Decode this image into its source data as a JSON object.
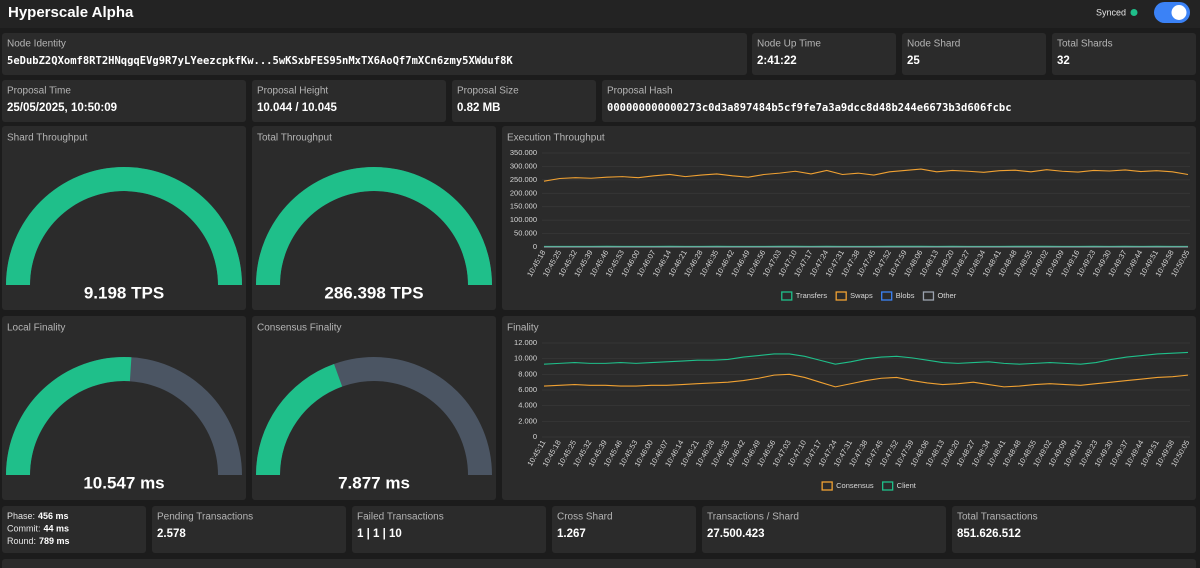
{
  "header": {
    "title": "Hyperscale Alpha",
    "status": "Synced"
  },
  "cards": [
    {
      "label": "Node Identity",
      "value": "5eDubZ2QXomf8RT2HNqgqEVg9R7yLYeezcpkfKw...5wKSxbFES95nMxTX6AoQf7mXCn6zmy5XWduf8K"
    },
    {
      "label": "Node Up Time",
      "value": "2:41:22"
    },
    {
      "label": "Node Shard",
      "value": "25"
    },
    {
      "label": "Total Shards",
      "value": "32"
    },
    {
      "label": "Proposal Time",
      "value": "25/05/2025, 10:50:09"
    },
    {
      "label": "Proposal Height",
      "value": "10.044 / 10.045"
    },
    {
      "label": "Proposal Size",
      "value": "0.82 MB"
    },
    {
      "label": "Proposal Hash",
      "value": "000000000000273c0d3a897484b5cf9fe7a3a9dcc8d48b244e6673b3d606fcbc"
    },
    {
      "label": "Pending Transactions",
      "value": "2.578"
    },
    {
      "label": "Failed Transactions",
      "value": "1 | 1 | 10"
    },
    {
      "label": "Cross Shard",
      "value": "1.267"
    },
    {
      "label": "Transactions / Shard",
      "value": "27.500.423"
    },
    {
      "label": "Total Transactions",
      "value": "851.626.512"
    }
  ],
  "phases": [
    {
      "label": "Phase:",
      "value": "456 ms"
    },
    {
      "label": "Commit:",
      "value": "44 ms"
    },
    {
      "label": "Round:",
      "value": "789 ms"
    }
  ],
  "gauges": [
    {
      "title": "Shard Throughput",
      "label": "9.198 TPS",
      "percent": 100
    },
    {
      "title": "Total Throughput",
      "label": "286.398 TPS",
      "percent": 100
    },
    {
      "title": "Local Finality",
      "label": "10.547 ms",
      "percent": 52
    },
    {
      "title": "Consensus Finality",
      "label": "7.877 ms",
      "percent": 39
    }
  ],
  "chart_data": [
    {
      "type": "line",
      "title": "Execution Throughput",
      "categories": [
        "10:45:18",
        "10:45:25",
        "10:45:32",
        "10:45:39",
        "10:45:46",
        "10:45:53",
        "10:46:00",
        "10:46:07",
        "10:46:14",
        "10:46:21",
        "10:46:28",
        "10:46:35",
        "10:46:42",
        "10:46:49",
        "10:46:56",
        "10:47:03",
        "10:47:10",
        "10:47:17",
        "10:47:24",
        "10:47:31",
        "10:47:38",
        "10:47:45",
        "10:47:52",
        "10:47:59",
        "10:48:06",
        "10:48:13",
        "10:48:20",
        "10:48:27",
        "10:48:34",
        "10:48:41",
        "10:48:48",
        "10:48:55",
        "10:49:02",
        "10:49:09",
        "10:49:16",
        "10:49:23",
        "10:49:30",
        "10:49:37",
        "10:49:44",
        "10:49:51",
        "10:49:58",
        "10:50:05"
      ],
      "series": [
        {
          "name": "Transfers",
          "color": "#1fbf8a",
          "values": [
            2100,
            2300,
            2000,
            2200,
            2400,
            2100,
            2300,
            2200,
            2500,
            2100,
            2300,
            2400,
            2200,
            2100,
            2300,
            2500,
            2400,
            2200,
            2600,
            2300,
            2200,
            2100,
            2400,
            2500,
            2600,
            2300,
            2400,
            2200,
            2100,
            2300,
            2500,
            2400,
            2600,
            2300,
            2200,
            2400,
            2300,
            2500,
            2200,
            2400,
            2300,
            2100
          ]
        },
        {
          "name": "Swaps",
          "color": "#f0a132",
          "values": [
            245000,
            255000,
            258000,
            256000,
            260000,
            262000,
            258000,
            265000,
            270000,
            262000,
            268000,
            272000,
            265000,
            260000,
            270000,
            275000,
            282000,
            272000,
            285000,
            270000,
            275000,
            268000,
            280000,
            285000,
            290000,
            280000,
            285000,
            282000,
            278000,
            284000,
            286000,
            280000,
            288000,
            282000,
            279000,
            285000,
            283000,
            287000,
            281000,
            284000,
            280000,
            270000
          ]
        },
        {
          "name": "Blobs",
          "color": "#3b82f6",
          "values": [
            0,
            0,
            0,
            0,
            0,
            0,
            0,
            0,
            0,
            0,
            0,
            0,
            0,
            0,
            0,
            0,
            0,
            0,
            0,
            0,
            0,
            0,
            0,
            0,
            0,
            0,
            0,
            0,
            0,
            0,
            0,
            0,
            0,
            0,
            0,
            0,
            0,
            0,
            0,
            0,
            0,
            0
          ]
        },
        {
          "name": "Other",
          "color": "#9ca3af",
          "values": [
            0,
            0,
            0,
            0,
            0,
            0,
            0,
            0,
            0,
            0,
            0,
            0,
            0,
            0,
            0,
            0,
            0,
            0,
            0,
            0,
            0,
            0,
            0,
            0,
            0,
            0,
            0,
            0,
            0,
            0,
            0,
            0,
            0,
            0,
            0,
            0,
            0,
            0,
            0,
            0,
            0,
            0
          ]
        }
      ],
      "ylim": [
        0,
        350000
      ],
      "yticks": [
        0,
        {
          "value": 50000,
          "label": "50.000"
        },
        {
          "value": 100000,
          "label": "100.000"
        },
        {
          "value": 150000,
          "label": "150.000"
        },
        {
          "value": 200000,
          "label": "200.000"
        },
        {
          "value": 250000,
          "label": "250.000"
        },
        {
          "value": 300000,
          "label": "300.000"
        },
        {
          "value": 350000,
          "label": "350.000"
        }
      ],
      "grid": true,
      "legend": "bottom"
    },
    {
      "type": "line",
      "title": "Finality",
      "categories": [
        "10:45:11",
        "10:45:18",
        "10:45:25",
        "10:45:32",
        "10:45:39",
        "10:45:46",
        "10:45:53",
        "10:46:00",
        "10:46:07",
        "10:46:14",
        "10:46:21",
        "10:46:28",
        "10:46:35",
        "10:46:42",
        "10:46:49",
        "10:46:56",
        "10:47:03",
        "10:47:10",
        "10:47:17",
        "10:47:24",
        "10:47:31",
        "10:47:38",
        "10:47:45",
        "10:47:52",
        "10:47:59",
        "10:48:06",
        "10:48:13",
        "10:48:20",
        "10:48:27",
        "10:48:34",
        "10:48:41",
        "10:48:48",
        "10:48:55",
        "10:49:02",
        "10:49:09",
        "10:49:16",
        "10:49:23",
        "10:49:30",
        "10:49:37",
        "10:49:44",
        "10:49:51",
        "10:49:58",
        "10:50:05"
      ],
      "series": [
        {
          "name": "Consensus",
          "color": "#f0a132",
          "values": [
            6500,
            6600,
            6700,
            6600,
            6600,
            6500,
            6500,
            6600,
            6600,
            6700,
            6800,
            6900,
            7000,
            7200,
            7500,
            7900,
            8000,
            7600,
            7000,
            6400,
            6800,
            7200,
            7500,
            7600,
            7200,
            6900,
            6700,
            6800,
            7000,
            6700,
            6400,
            6500,
            6700,
            6800,
            6700,
            6600,
            6800,
            7000,
            7200,
            7400,
            7600,
            7700,
            7900
          ]
        },
        {
          "name": "Client",
          "color": "#1fbf8a",
          "values": [
            9300,
            9400,
            9500,
            9400,
            9400,
            9500,
            9400,
            9500,
            9600,
            9700,
            9800,
            9800,
            9900,
            10200,
            10400,
            10600,
            10600,
            10300,
            9800,
            9300,
            9600,
            10000,
            10200,
            10300,
            10100,
            9800,
            9500,
            9400,
            9500,
            9600,
            9400,
            9300,
            9400,
            9500,
            9400,
            9300,
            9500,
            9900,
            10200,
            10400,
            10600,
            10700,
            10800
          ]
        }
      ],
      "ylim": [
        0,
        12000
      ],
      "yticks": [
        0,
        {
          "value": 2000,
          "label": "2.000"
        },
        {
          "value": 4000,
          "label": "4.000"
        },
        {
          "value": 6000,
          "label": "6.000"
        },
        {
          "value": 8000,
          "label": "8.000"
        },
        {
          "value": 10000,
          "label": "10.000"
        },
        {
          "value": 12000,
          "label": "12.000"
        }
      ],
      "grid": true,
      "legend": "bottom"
    }
  ]
}
